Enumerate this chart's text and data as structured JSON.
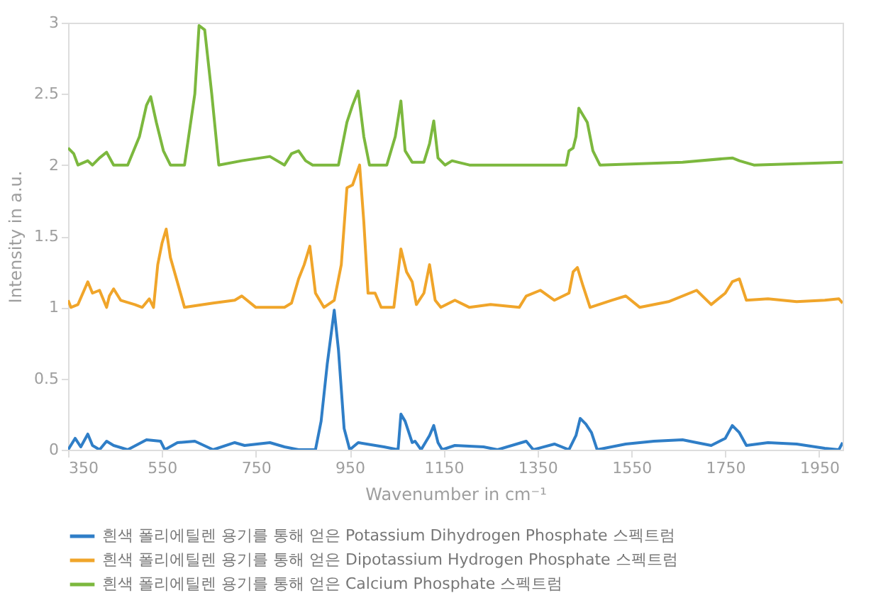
{
  "chart_data": {
    "type": "line",
    "xlabel": "Wavenumber in cm⁻¹",
    "ylabel": "Intensity in a.u.",
    "xlim": [
      350,
      2000
    ],
    "xticks": [
      350,
      550,
      750,
      950,
      1150,
      1350,
      1550,
      1750,
      1950
    ],
    "ylim": [
      0,
      3
    ],
    "yticks": [
      0,
      0.5,
      1,
      1.5,
      2,
      2.5,
      3
    ],
    "grid": false,
    "legend": "bottom",
    "marker": "none",
    "line_style": "solid",
    "series": [
      {
        "name": "흰색 폴리에틸렌 용기를 통해 얻은 Potassium Dihydrogen Phosphate 스펙트럼",
        "color": "#2f7ec7",
        "x": [
          350,
          365,
          377,
          392,
          402,
          417,
          432,
          447,
          477,
          517,
          547,
          556,
          583,
          620,
          659,
          705,
          726,
          780,
          811,
          841,
          877,
          889,
          902,
          917,
          926,
          938,
          950,
          968,
          1023,
          1053,
          1059,
          1068,
          1083,
          1089,
          1102,
          1120,
          1129,
          1138,
          1147,
          1174,
          1235,
          1265,
          1326,
          1341,
          1386,
          1417,
          1432,
          1441,
          1453,
          1465,
          1477,
          1538,
          1598,
          1659,
          1689,
          1720,
          1750,
          1765,
          1780,
          1795,
          1841,
          1902,
          1962,
          1992,
          2000
        ],
        "values": [
          0,
          0.08,
          0.02,
          0.11,
          0.03,
          0,
          0.06,
          0.03,
          0,
          0.07,
          0.06,
          0,
          0.05,
          0.06,
          0,
          0.05,
          0.03,
          0.05,
          0.02,
          0,
          0,
          0.2,
          0.6,
          0.98,
          0.7,
          0.15,
          0,
          0.05,
          0.02,
          0,
          0.25,
          0.2,
          0.05,
          0.06,
          0,
          0.1,
          0.17,
          0.05,
          0,
          0.03,
          0.02,
          0,
          0.06,
          0,
          0.04,
          0,
          0.1,
          0.22,
          0.18,
          0.12,
          0,
          0.04,
          0.06,
          0.07,
          0.05,
          0.03,
          0.08,
          0.17,
          0.12,
          0.03,
          0.05,
          0.04,
          0.01,
          0,
          0.05
        ]
      },
      {
        "name": "흰색 폴리에틸렌 용기를 통해 얻은 Dipotassium Hydrogen Phosphate 스펙트럼",
        "color": "#f0a52a",
        "x": [
          350,
          356,
          371,
          392,
          402,
          417,
          432,
          438,
          447,
          462,
          492,
          508,
          523,
          532,
          541,
          550,
          559,
          568,
          598,
          659,
          705,
          720,
          750,
          811,
          826,
          841,
          853,
          865,
          877,
          895,
          917,
          932,
          944,
          956,
          971,
          980,
          989,
          1004,
          1017,
          1044,
          1059,
          1071,
          1083,
          1092,
          1108,
          1120,
          1132,
          1144,
          1174,
          1205,
          1250,
          1311,
          1326,
          1356,
          1386,
          1417,
          1426,
          1435,
          1447,
          1462,
          1508,
          1538,
          1568,
          1629,
          1689,
          1720,
          1750,
          1765,
          1780,
          1795,
          1841,
          1902,
          1962,
          1992,
          2000
        ],
        "values": [
          1.05,
          1,
          1.02,
          1.18,
          1.1,
          1.12,
          1,
          1.08,
          1.13,
          1.05,
          1.02,
          1,
          1.06,
          1,
          1.3,
          1.45,
          1.55,
          1.35,
          1,
          1.03,
          1.05,
          1.08,
          1,
          1,
          1.03,
          1.2,
          1.3,
          1.43,
          1.1,
          1,
          1.05,
          1.3,
          1.84,
          1.86,
          2,
          1.6,
          1.1,
          1.1,
          1,
          1,
          1.41,
          1.25,
          1.18,
          1.02,
          1.1,
          1.3,
          1.05,
          1,
          1.05,
          1,
          1.02,
          1,
          1.08,
          1.12,
          1.05,
          1.1,
          1.25,
          1.28,
          1.15,
          1,
          1.05,
          1.08,
          1,
          1.04,
          1.12,
          1.02,
          1.1,
          1.18,
          1.2,
          1.05,
          1.06,
          1.04,
          1.05,
          1.06,
          1.03
        ]
      },
      {
        "name": "흰색 폴리에틸렌 용기를 통해 얻은 Calcium Phosphate 스펙트럼",
        "color": "#7cb83e",
        "x": [
          350,
          362,
          371,
          392,
          402,
          417,
          432,
          447,
          477,
          502,
          517,
          526,
          538,
          553,
          568,
          598,
          620,
          629,
          641,
          656,
          671,
          720,
          780,
          811,
          826,
          841,
          856,
          871,
          926,
          944,
          956,
          968,
          980,
          992,
          1029,
          1047,
          1059,
          1068,
          1083,
          1108,
          1120,
          1129,
          1138,
          1153,
          1168,
          1180,
          1205,
          1411,
          1417,
          1426,
          1432,
          1438,
          1447,
          1456,
          1468,
          1483,
          1659,
          1765,
          1780,
          1811,
          2000
        ],
        "values": [
          2.12,
          2.08,
          2,
          2.03,
          2,
          2.05,
          2.09,
          2,
          2,
          2.2,
          2.42,
          2.48,
          2.3,
          2.1,
          2,
          2,
          2.5,
          2.98,
          2.95,
          2.5,
          2,
          2.03,
          2.06,
          2,
          2.08,
          2.1,
          2.03,
          2,
          2,
          2.3,
          2.42,
          2.52,
          2.2,
          2,
          2,
          2.2,
          2.45,
          2.1,
          2.02,
          2.02,
          2.15,
          2.31,
          2.05,
          2,
          2.03,
          2.02,
          2,
          2,
          2.1,
          2.12,
          2.2,
          2.4,
          2.35,
          2.3,
          2.1,
          2,
          2.02,
          2.05,
          2.03,
          2,
          2.02
        ]
      }
    ]
  }
}
